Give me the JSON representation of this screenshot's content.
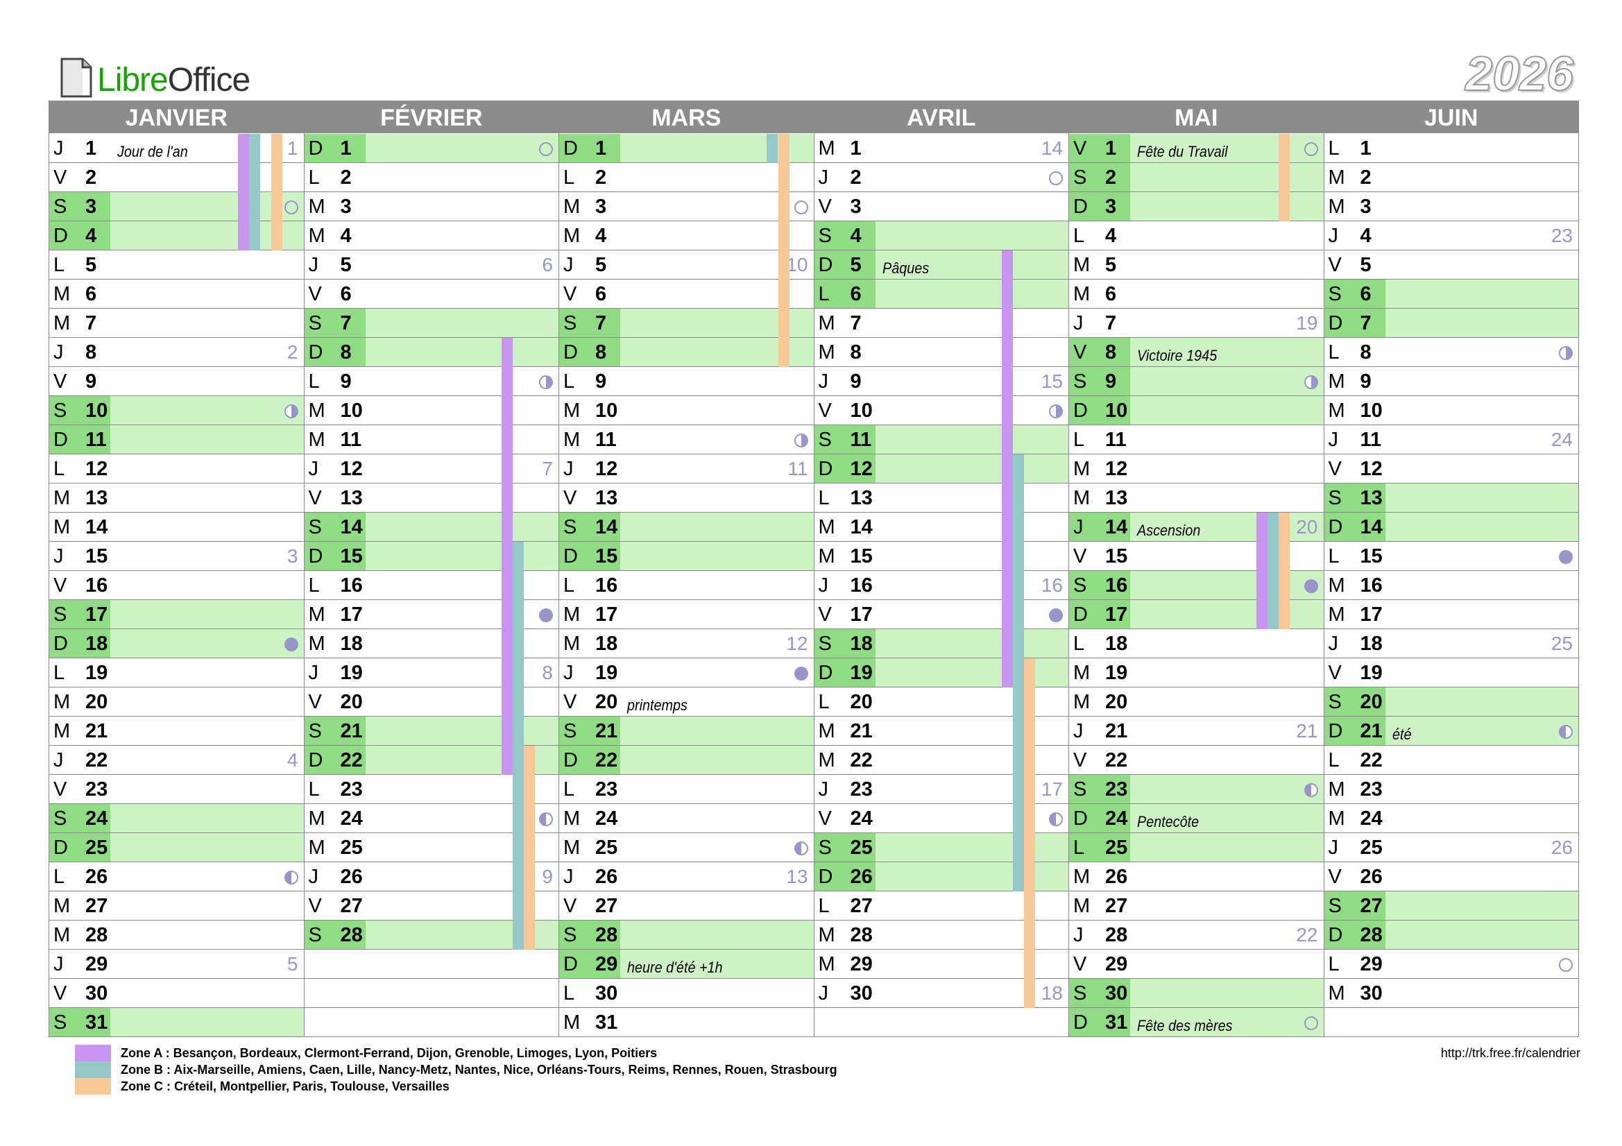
{
  "header": {
    "logo_part1": "Libre",
    "logo_part2": "Office",
    "year": "2026"
  },
  "colors": {
    "weekend": "#cdf3c5",
    "weekend_day": "#90dc84",
    "zoneA": "#c896f0",
    "zoneB": "#96c8c8",
    "zoneC": "#f8c896",
    "moon": "#9896c8",
    "header_bg": "#8c8c8c"
  },
  "months": [
    {
      "name": "JANVIER",
      "days": [
        {
          "l": "J",
          "n": "1",
          "ev": "Jour de l'an",
          "wk": "1",
          "z": [
            "A",
            "B",
            "",
            "C"
          ]
        },
        {
          "l": "V",
          "n": "2",
          "z": [
            "A",
            "B",
            "",
            "C"
          ]
        },
        {
          "l": "S",
          "n": "3",
          "we": true,
          "moon": "new",
          "z": [
            "A",
            "B",
            "",
            "C"
          ]
        },
        {
          "l": "D",
          "n": "4",
          "we": true,
          "z": [
            "A",
            "B",
            "",
            "C"
          ]
        },
        {
          "l": "L",
          "n": "5"
        },
        {
          "l": "M",
          "n": "6"
        },
        {
          "l": "M",
          "n": "7"
        },
        {
          "l": "J",
          "n": "8",
          "wk": "2"
        },
        {
          "l": "V",
          "n": "9"
        },
        {
          "l": "S",
          "n": "10",
          "we": true,
          "moon": "fq"
        },
        {
          "l": "D",
          "n": "11",
          "we": true
        },
        {
          "l": "L",
          "n": "12"
        },
        {
          "l": "M",
          "n": "13"
        },
        {
          "l": "M",
          "n": "14"
        },
        {
          "l": "J",
          "n": "15",
          "wk": "3"
        },
        {
          "l": "V",
          "n": "16"
        },
        {
          "l": "S",
          "n": "17",
          "we": true
        },
        {
          "l": "D",
          "n": "18",
          "we": true,
          "moon": "full"
        },
        {
          "l": "L",
          "n": "19"
        },
        {
          "l": "M",
          "n": "20"
        },
        {
          "l": "M",
          "n": "21"
        },
        {
          "l": "J",
          "n": "22",
          "wk": "4"
        },
        {
          "l": "V",
          "n": "23"
        },
        {
          "l": "S",
          "n": "24",
          "we": true
        },
        {
          "l": "D",
          "n": "25",
          "we": true
        },
        {
          "l": "L",
          "n": "26",
          "moon": "lq"
        },
        {
          "l": "M",
          "n": "27"
        },
        {
          "l": "M",
          "n": "28"
        },
        {
          "l": "J",
          "n": "29",
          "wk": "5"
        },
        {
          "l": "V",
          "n": "30"
        },
        {
          "l": "S",
          "n": "31",
          "we": true
        }
      ]
    },
    {
      "name": "FÉVRIER",
      "days": [
        {
          "l": "D",
          "n": "1",
          "we": true,
          "moon": "new"
        },
        {
          "l": "L",
          "n": "2"
        },
        {
          "l": "M",
          "n": "3"
        },
        {
          "l": "M",
          "n": "4"
        },
        {
          "l": "J",
          "n": "5",
          "wk": "6"
        },
        {
          "l": "V",
          "n": "6"
        },
        {
          "l": "S",
          "n": "7",
          "we": true
        },
        {
          "l": "D",
          "n": "8",
          "we": true,
          "z": [
            "A"
          ]
        },
        {
          "l": "L",
          "n": "9",
          "moon": "fq",
          "z": [
            "A"
          ]
        },
        {
          "l": "M",
          "n": "10",
          "z": [
            "A"
          ]
        },
        {
          "l": "M",
          "n": "11",
          "z": [
            "A"
          ]
        },
        {
          "l": "J",
          "n": "12",
          "wk": "7",
          "z": [
            "A"
          ]
        },
        {
          "l": "V",
          "n": "13",
          "z": [
            "A"
          ]
        },
        {
          "l": "S",
          "n": "14",
          "we": true,
          "z": [
            "A"
          ]
        },
        {
          "l": "D",
          "n": "15",
          "we": true,
          "z": [
            "A",
            "B"
          ]
        },
        {
          "l": "L",
          "n": "16",
          "z": [
            "A",
            "B"
          ]
        },
        {
          "l": "M",
          "n": "17",
          "moon": "full",
          "z": [
            "A",
            "B"
          ]
        },
        {
          "l": "M",
          "n": "18",
          "z": [
            "A",
            "B"
          ]
        },
        {
          "l": "J",
          "n": "19",
          "wk": "8",
          "z": [
            "A",
            "B"
          ]
        },
        {
          "l": "V",
          "n": "20",
          "z": [
            "A",
            "B"
          ]
        },
        {
          "l": "S",
          "n": "21",
          "we": true,
          "z": [
            "A",
            "B"
          ]
        },
        {
          "l": "D",
          "n": "22",
          "we": true,
          "z": [
            "A",
            "B",
            "C"
          ]
        },
        {
          "l": "L",
          "n": "23",
          "z": [
            "",
            "B",
            "C"
          ]
        },
        {
          "l": "M",
          "n": "24",
          "moon": "lq",
          "z": [
            "",
            "B",
            "C"
          ]
        },
        {
          "l": "M",
          "n": "25",
          "z": [
            "",
            "B",
            "C"
          ]
        },
        {
          "l": "J",
          "n": "26",
          "wk": "9",
          "z": [
            "",
            "B",
            "C"
          ]
        },
        {
          "l": "V",
          "n": "27",
          "z": [
            "",
            "B",
            "C"
          ]
        },
        {
          "l": "S",
          "n": "28",
          "we": true,
          "z": [
            "",
            "B",
            "C"
          ]
        },
        {
          "blank": true
        },
        {
          "blank": true
        },
        {
          "blank": true
        }
      ]
    },
    {
      "name": "MARS",
      "days": [
        {
          "l": "D",
          "n": "1",
          "we": true,
          "z": [
            "",
            "B",
            "C"
          ]
        },
        {
          "l": "L",
          "n": "2",
          "z": [
            "",
            "",
            "C"
          ]
        },
        {
          "l": "M",
          "n": "3",
          "moon": "new",
          "z": [
            "",
            "",
            "C"
          ]
        },
        {
          "l": "M",
          "n": "4",
          "z": [
            "",
            "",
            "C"
          ]
        },
        {
          "l": "J",
          "n": "5",
          "wk": "10",
          "z": [
            "",
            "",
            "C"
          ]
        },
        {
          "l": "V",
          "n": "6",
          "z": [
            "",
            "",
            "C"
          ]
        },
        {
          "l": "S",
          "n": "7",
          "we": true,
          "z": [
            "",
            "",
            "C"
          ]
        },
        {
          "l": "D",
          "n": "8",
          "we": true,
          "z": [
            "",
            "",
            "C"
          ]
        },
        {
          "l": "L",
          "n": "9"
        },
        {
          "l": "M",
          "n": "10"
        },
        {
          "l": "M",
          "n": "11",
          "moon": "fq"
        },
        {
          "l": "J",
          "n": "12",
          "wk": "11"
        },
        {
          "l": "V",
          "n": "13"
        },
        {
          "l": "S",
          "n": "14",
          "we": true
        },
        {
          "l": "D",
          "n": "15",
          "we": true
        },
        {
          "l": "L",
          "n": "16"
        },
        {
          "l": "M",
          "n": "17"
        },
        {
          "l": "M",
          "n": "18",
          "wk": "12"
        },
        {
          "l": "J",
          "n": "19",
          "moon": "full"
        },
        {
          "l": "V",
          "n": "20",
          "ev": "printemps"
        },
        {
          "l": "S",
          "n": "21",
          "we": true
        },
        {
          "l": "D",
          "n": "22",
          "we": true
        },
        {
          "l": "L",
          "n": "23"
        },
        {
          "l": "M",
          "n": "24"
        },
        {
          "l": "M",
          "n": "25",
          "moon": "lq"
        },
        {
          "l": "J",
          "n": "26",
          "wk": "13"
        },
        {
          "l": "V",
          "n": "27"
        },
        {
          "l": "S",
          "n": "28",
          "we": true
        },
        {
          "l": "D",
          "n": "29",
          "we": true,
          "ev": "heure d'été +1h"
        },
        {
          "l": "L",
          "n": "30"
        },
        {
          "l": "M",
          "n": "31"
        }
      ]
    },
    {
      "name": "AVRIL",
      "days": [
        {
          "l": "M",
          "n": "1",
          "wk": "14"
        },
        {
          "l": "J",
          "n": "2",
          "moon": "new"
        },
        {
          "l": "V",
          "n": "3"
        },
        {
          "l": "S",
          "n": "4",
          "we": true
        },
        {
          "l": "D",
          "n": "5",
          "we": true,
          "ev": "Pâques",
          "z": [
            "A"
          ]
        },
        {
          "l": "L",
          "n": "6",
          "we": true,
          "z": [
            "A"
          ]
        },
        {
          "l": "M",
          "n": "7",
          "z": [
            "A"
          ]
        },
        {
          "l": "M",
          "n": "8",
          "z": [
            "A"
          ]
        },
        {
          "l": "J",
          "n": "9",
          "wk": "15",
          "z": [
            "A"
          ]
        },
        {
          "l": "V",
          "n": "10",
          "moon": "fq",
          "z": [
            "A"
          ]
        },
        {
          "l": "S",
          "n": "11",
          "we": true,
          "z": [
            "A"
          ]
        },
        {
          "l": "D",
          "n": "12",
          "we": true,
          "z": [
            "A",
            "B"
          ]
        },
        {
          "l": "L",
          "n": "13",
          "z": [
            "A",
            "B"
          ]
        },
        {
          "l": "M",
          "n": "14",
          "z": [
            "A",
            "B"
          ]
        },
        {
          "l": "M",
          "n": "15",
          "z": [
            "A",
            "B"
          ]
        },
        {
          "l": "J",
          "n": "16",
          "wk": "16",
          "z": [
            "A",
            "B"
          ]
        },
        {
          "l": "V",
          "n": "17",
          "moon": "full",
          "z": [
            "A",
            "B"
          ]
        },
        {
          "l": "S",
          "n": "18",
          "we": true,
          "z": [
            "A",
            "B"
          ]
        },
        {
          "l": "D",
          "n": "19",
          "we": true,
          "z": [
            "A",
            "B",
            "C"
          ]
        },
        {
          "l": "L",
          "n": "20",
          "z": [
            "",
            "B",
            "C"
          ]
        },
        {
          "l": "M",
          "n": "21",
          "z": [
            "",
            "B",
            "C"
          ]
        },
        {
          "l": "M",
          "n": "22",
          "z": [
            "",
            "B",
            "C"
          ]
        },
        {
          "l": "J",
          "n": "23",
          "wk": "17",
          "z": [
            "",
            "B",
            "C"
          ]
        },
        {
          "l": "V",
          "n": "24",
          "moon": "lq",
          "z": [
            "",
            "B",
            "C"
          ]
        },
        {
          "l": "S",
          "n": "25",
          "we": true,
          "z": [
            "",
            "B",
            "C"
          ]
        },
        {
          "l": "D",
          "n": "26",
          "we": true,
          "z": [
            "",
            "B",
            "C"
          ]
        },
        {
          "l": "L",
          "n": "27",
          "z": [
            "",
            "",
            "C"
          ]
        },
        {
          "l": "M",
          "n": "28",
          "z": [
            "",
            "",
            "C"
          ]
        },
        {
          "l": "M",
          "n": "29",
          "z": [
            "",
            "",
            "C"
          ]
        },
        {
          "l": "J",
          "n": "30",
          "wk": "18",
          "z": [
            "",
            "",
            "C"
          ]
        },
        {
          "blank": true
        }
      ]
    },
    {
      "name": "MAI",
      "days": [
        {
          "l": "V",
          "n": "1",
          "we": true,
          "ev": "Fête du Travail",
          "moon": "new",
          "z": [
            "",
            "",
            "C"
          ]
        },
        {
          "l": "S",
          "n": "2",
          "we": true,
          "z": [
            "",
            "",
            "C"
          ]
        },
        {
          "l": "D",
          "n": "3",
          "we": true,
          "z": [
            "",
            "",
            "C"
          ]
        },
        {
          "l": "L",
          "n": "4"
        },
        {
          "l": "M",
          "n": "5"
        },
        {
          "l": "M",
          "n": "6"
        },
        {
          "l": "J",
          "n": "7",
          "wk": "19"
        },
        {
          "l": "V",
          "n": "8",
          "we": true,
          "ev": "Victoire 1945"
        },
        {
          "l": "S",
          "n": "9",
          "we": true,
          "moon": "fq"
        },
        {
          "l": "D",
          "n": "10",
          "we": true
        },
        {
          "l": "L",
          "n": "11"
        },
        {
          "l": "M",
          "n": "12"
        },
        {
          "l": "M",
          "n": "13"
        },
        {
          "l": "J",
          "n": "14",
          "we": true,
          "ev": "Ascension",
          "wk": "20",
          "z": [
            "A",
            "B",
            "C"
          ]
        },
        {
          "l": "V",
          "n": "15",
          "z": [
            "A",
            "B",
            "C"
          ]
        },
        {
          "l": "S",
          "n": "16",
          "we": true,
          "moon": "full",
          "z": [
            "A",
            "B",
            "C"
          ]
        },
        {
          "l": "D",
          "n": "17",
          "we": true,
          "z": [
            "A",
            "B",
            "C"
          ]
        },
        {
          "l": "L",
          "n": "18"
        },
        {
          "l": "M",
          "n": "19"
        },
        {
          "l": "M",
          "n": "20"
        },
        {
          "l": "J",
          "n": "21",
          "wk": "21"
        },
        {
          "l": "V",
          "n": "22"
        },
        {
          "l": "S",
          "n": "23",
          "we": true,
          "moon": "lq"
        },
        {
          "l": "D",
          "n": "24",
          "we": true,
          "ev": "Pentecôte"
        },
        {
          "l": "L",
          "n": "25",
          "we": true
        },
        {
          "l": "M",
          "n": "26"
        },
        {
          "l": "M",
          "n": "27"
        },
        {
          "l": "J",
          "n": "28",
          "wk": "22"
        },
        {
          "l": "V",
          "n": "29"
        },
        {
          "l": "S",
          "n": "30",
          "we": true
        },
        {
          "l": "D",
          "n": "31",
          "we": true,
          "ev": "Fête des mères",
          "moon": "new"
        }
      ]
    },
    {
      "name": "JUIN",
      "days": [
        {
          "l": "L",
          "n": "1"
        },
        {
          "l": "M",
          "n": "2"
        },
        {
          "l": "M",
          "n": "3"
        },
        {
          "l": "J",
          "n": "4",
          "wk": "23"
        },
        {
          "l": "V",
          "n": "5"
        },
        {
          "l": "S",
          "n": "6",
          "we": true
        },
        {
          "l": "D",
          "n": "7",
          "we": true
        },
        {
          "l": "L",
          "n": "8",
          "moon": "fq"
        },
        {
          "l": "M",
          "n": "9"
        },
        {
          "l": "M",
          "n": "10"
        },
        {
          "l": "J",
          "n": "11",
          "wk": "24"
        },
        {
          "l": "V",
          "n": "12"
        },
        {
          "l": "S",
          "n": "13",
          "we": true
        },
        {
          "l": "D",
          "n": "14",
          "we": true
        },
        {
          "l": "L",
          "n": "15",
          "moon": "full"
        },
        {
          "l": "M",
          "n": "16"
        },
        {
          "l": "M",
          "n": "17"
        },
        {
          "l": "J",
          "n": "18",
          "wk": "25"
        },
        {
          "l": "V",
          "n": "19"
        },
        {
          "l": "S",
          "n": "20",
          "we": true
        },
        {
          "l": "D",
          "n": "21",
          "we": true,
          "ev": "été",
          "moon": "lq"
        },
        {
          "l": "L",
          "n": "22"
        },
        {
          "l": "M",
          "n": "23"
        },
        {
          "l": "M",
          "n": "24"
        },
        {
          "l": "J",
          "n": "25",
          "wk": "26"
        },
        {
          "l": "V",
          "n": "26"
        },
        {
          "l": "S",
          "n": "27",
          "we": true
        },
        {
          "l": "D",
          "n": "28",
          "we": true
        },
        {
          "l": "L",
          "n": "29",
          "moon": "new"
        },
        {
          "l": "M",
          "n": "30"
        },
        {
          "blank": true
        }
      ]
    }
  ],
  "legend": [
    {
      "zone": "A",
      "text": "Zone A : Besançon, Bordeaux, Clermont-Ferrand, Dijon, Grenoble, Limoges, Lyon, Poitiers"
    },
    {
      "zone": "B",
      "text": "Zone B : Aix-Marseille, Amiens, Caen, Lille, Nancy-Metz, Nantes, Nice, Orléans-Tours, Reims, Rennes, Rouen, Strasbourg"
    },
    {
      "zone": "C",
      "text": "Zone C : Créteil, Montpellier, Paris, Toulouse, Versailles"
    }
  ],
  "url": "http://trk.free.fr/calendrier"
}
